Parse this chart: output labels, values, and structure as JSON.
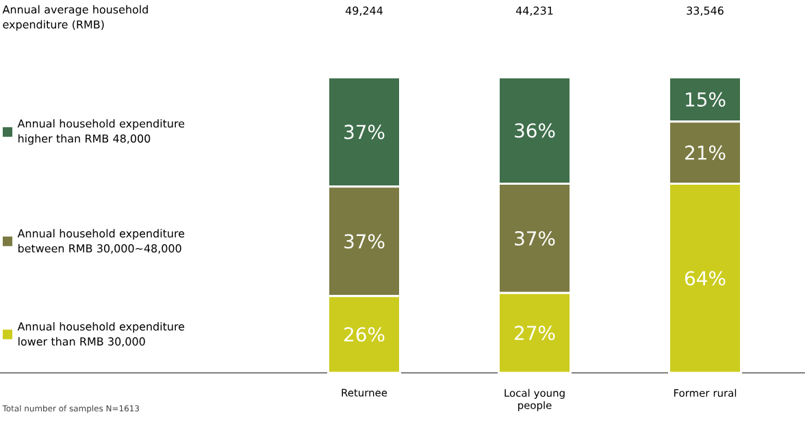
{
  "chart_data": {
    "type": "bar",
    "stacked": true,
    "categories": [
      "Returnee",
      "Local young people",
      "Former rural"
    ],
    "series": [
      {
        "name": "Annual household expenditure lower than RMB 30,000",
        "color": "#cccc1f",
        "values": [
          26,
          27,
          64
        ],
        "value_labels": [
          "26%",
          "27%",
          "64%"
        ]
      },
      {
        "name": "Annual household expenditure between RMB 30,000~48,000",
        "color": "#7b7a42",
        "values": [
          37,
          37,
          21
        ],
        "value_labels": [
          "37%",
          "37%",
          "21%"
        ]
      },
      {
        "name": "Annual household expenditure higher than RMB 48,000",
        "color": "#3f6f4b",
        "values": [
          37,
          36,
          15
        ],
        "value_labels": [
          "37%",
          "36%",
          "15%"
        ]
      }
    ],
    "legend": "left",
    "tick_labels": "x",
    "annotations": [
      "Annual average household expenditure (RMB)",
      "49,244",
      "44,231",
      "33,546",
      "Total number of samples N=1613"
    ]
  }
}
